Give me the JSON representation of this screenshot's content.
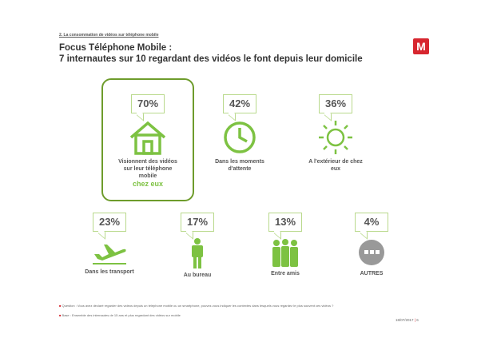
{
  "header": {
    "breadcrumb": "2. La consommation de vidéos sur téléphone mobile",
    "title_line1": "Focus Téléphone Mobile :",
    "title_line2": "7 internautes sur 10 regardant des vidéos le font depuis leur domicile",
    "logo": "M"
  },
  "items": [
    {
      "percent": "70%",
      "label": "Visionnent des vidéos sur leur téléphone mobile",
      "highlight": "chez eux"
    },
    {
      "percent": "42%",
      "label": "Dans les moments d'attente"
    },
    {
      "percent": "36%",
      "label": "A l'extérieur de chez eux"
    },
    {
      "percent": "23%",
      "label": "Dans les transport"
    },
    {
      "percent": "17%",
      "label": "Au bureau"
    },
    {
      "percent": "13%",
      "label": "Entre amis"
    },
    {
      "percent": "4%",
      "label": "AUTRES"
    }
  ],
  "footer": {
    "question": "Question : Vous avez déclaré regarder des vidéos depuis un téléphone mobile ou un smartphone, pouvez-vous indiquer les contextes dans lesquels vous regardez le plus souvent ces vidéos ?",
    "base": "Base : Ensemble des internautes de 15 ans et plus regardant des vidéos sur mobile",
    "date": "18/07/2017",
    "page": "6"
  }
}
